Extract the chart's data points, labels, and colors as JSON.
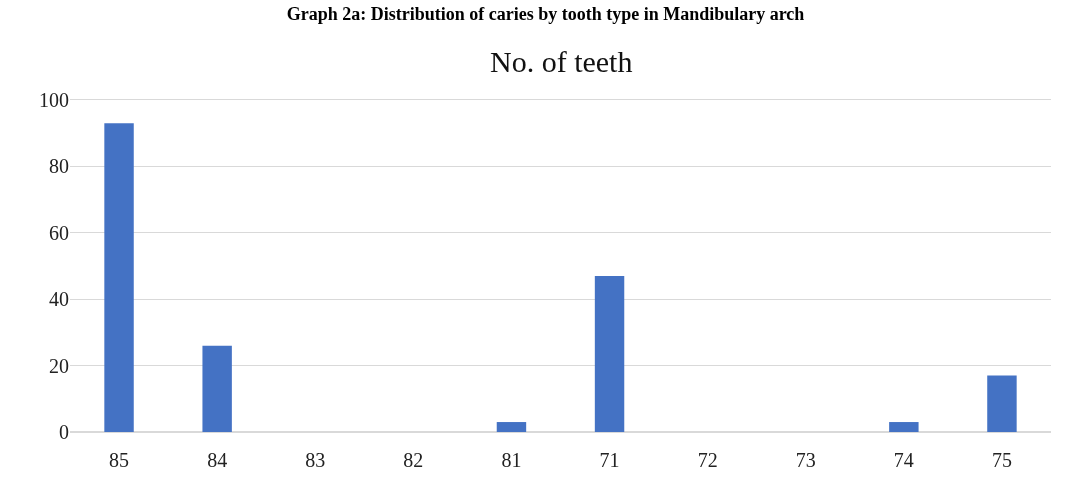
{
  "chart_data": {
    "type": "bar",
    "title": "Graph 2a: Distribution of caries by tooth type in Mandibulary arch",
    "subtitle": "No. of teeth",
    "categories": [
      "85",
      "84",
      "83",
      "82",
      "81",
      "71",
      "72",
      "73",
      "74",
      "75"
    ],
    "values": [
      93,
      26,
      0,
      0,
      3,
      47,
      0,
      0,
      3,
      17
    ],
    "color": "#4472c4",
    "ylim": [
      0,
      100
    ],
    "yticks": [
      0,
      20,
      40,
      60,
      80,
      100
    ],
    "grid": "y"
  }
}
